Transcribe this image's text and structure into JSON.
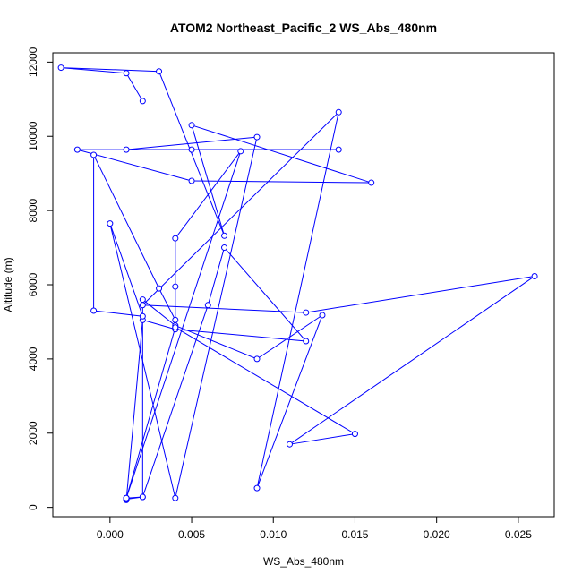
{
  "chart_data": {
    "type": "line",
    "title": "ATOM2 Northeast_Pacific_2 WS_Abs_480nm",
    "xlabel": "WS_Abs_480nm",
    "ylabel": "Altitude (m)",
    "xlim": [
      -0.0035,
      0.0272
    ],
    "ylim": [
      -250,
      12250
    ],
    "xticks": [
      0.0,
      0.005,
      0.01,
      0.015,
      0.02,
      0.025
    ],
    "xtick_labels": [
      "0.000",
      "0.005",
      "0.010",
      "0.015",
      "0.020",
      "0.025"
    ],
    "yticks": [
      0,
      2000,
      4000,
      6000,
      8000,
      10000,
      12000
    ],
    "ytick_labels": [
      "0",
      "2000",
      "4000",
      "6000",
      "8000",
      "10000",
      "12000"
    ],
    "grid": false,
    "color": "#0000ff",
    "markers": "open-circle",
    "series": [
      {
        "x": [
          0.001,
          0.001,
          0.002,
          0.004,
          0.012,
          0.007,
          0.006,
          0.002,
          0.001,
          0.001,
          0.004,
          0.004,
          0.004,
          0.008,
          0.001,
          0.002,
          0.002,
          0.004,
          0.009,
          0.013,
          0.009,
          0.014,
          0.002,
          0.012,
          0.026,
          0.011,
          0.015,
          0.004,
          0.004,
          0.003,
          -0.001,
          -0.001,
          0.002,
          0.0,
          0.004,
          0.009,
          0.001,
          0.005,
          0.014,
          -0.002,
          0.005,
          0.016,
          0.005,
          0.007,
          0.003,
          -0.003,
          0.001,
          0.002
        ],
        "y": [
          250,
          200,
          5050,
          4800,
          4480,
          7000,
          5450,
          280,
          220,
          250,
          4850,
          5950,
          7250,
          9600,
          250,
          280,
          5600,
          4900,
          4000,
          5180,
          520,
          10650,
          5450,
          5250,
          6230,
          1700,
          1980,
          4850,
          5050,
          5900,
          9500,
          5300,
          5150,
          7650,
          250,
          9980,
          9640,
          9640,
          9640,
          9640,
          8800,
          8750,
          10300,
          7320,
          11750,
          11850,
          11700,
          10950
        ]
      }
    ]
  }
}
